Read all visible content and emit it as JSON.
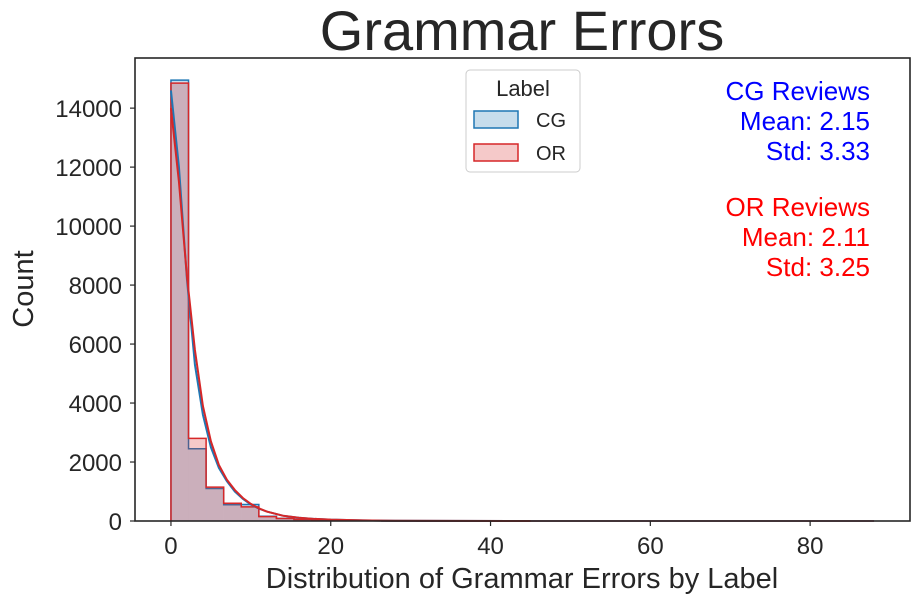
{
  "chart_data": {
    "type": "histogram",
    "title": "Grammar Errors",
    "xlabel": "Distribution of Grammar Errors by Label",
    "ylabel": "Count",
    "xlim": [
      -4.5,
      92.5
    ],
    "ylim": [
      0,
      15700
    ],
    "xticks": [
      0,
      20,
      40,
      60,
      80
    ],
    "yticks": [
      0,
      2000,
      4000,
      6000,
      8000,
      10000,
      12000,
      14000
    ],
    "bin_width": 2.2,
    "bin_start": 0,
    "bin_end": 88,
    "legend": {
      "title": "Label",
      "placement": "top-center"
    },
    "series": [
      {
        "name": "CG",
        "color": "#1f77b4",
        "counts": [
          14950,
          2450,
          1100,
          550,
          560,
          160,
          90,
          55,
          35,
          20,
          12,
          8,
          5,
          3,
          2,
          2,
          1,
          1,
          1,
          1,
          0,
          1,
          0,
          0,
          0,
          0,
          0,
          0,
          0,
          0,
          0,
          0,
          0,
          0,
          0,
          0,
          0,
          0,
          0,
          0
        ],
        "kde_x": [
          0,
          1,
          2,
          3,
          4,
          5,
          6,
          7,
          8,
          9,
          10,
          11,
          12,
          14,
          16,
          18,
          20,
          24,
          28,
          35,
          45
        ],
        "kde_y": [
          14600,
          12000,
          8200,
          5300,
          3600,
          2500,
          1800,
          1350,
          1000,
          750,
          560,
          420,
          320,
          180,
          110,
          70,
          45,
          20,
          10,
          4,
          0
        ]
      },
      {
        "name": "OR",
        "color": "#d62728",
        "counts": [
          14850,
          2800,
          1150,
          600,
          480,
          150,
          85,
          50,
          30,
          18,
          10,
          7,
          4,
          3,
          2,
          1,
          1,
          1,
          0,
          1,
          0,
          0,
          0,
          0,
          0,
          0,
          0,
          0,
          0,
          0,
          0,
          0,
          0,
          0,
          0,
          0,
          0,
          0,
          0,
          0
        ],
        "kde_x": [
          0,
          1,
          2,
          3,
          4,
          5,
          6,
          7,
          8,
          9,
          10,
          11,
          12,
          14,
          16,
          18,
          20,
          24,
          28,
          35,
          45
        ],
        "kde_y": [
          14000,
          11500,
          8300,
          5800,
          3900,
          2700,
          1900,
          1400,
          1050,
          780,
          580,
          430,
          320,
          180,
          110,
          70,
          45,
          20,
          10,
          4,
          0
        ]
      }
    ],
    "annotations": [
      {
        "color": "#0000ff",
        "lines": [
          "CG Reviews",
          "Mean: 2.15",
          "Std: 3.33"
        ]
      },
      {
        "color": "#ff0000",
        "lines": [
          "OR Reviews",
          "Mean: 2.11",
          "Std: 3.25"
        ]
      }
    ]
  }
}
